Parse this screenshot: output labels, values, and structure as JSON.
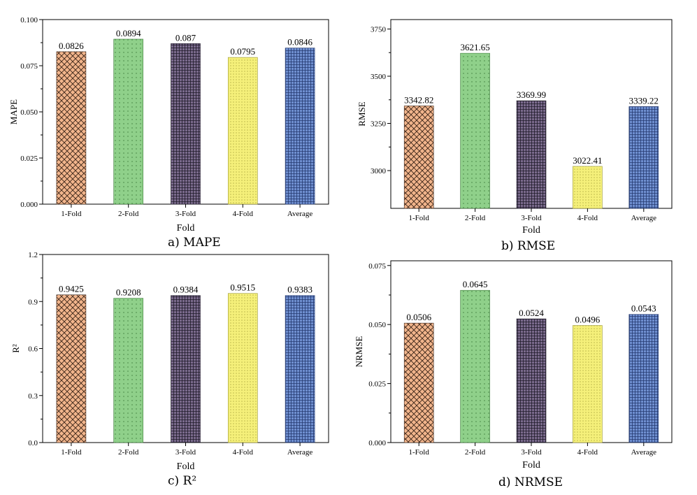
{
  "chart_data": [
    {
      "type": "bar",
      "caption": "a)  MAPE",
      "categories": [
        "1-Fold",
        "2-Fold",
        "3-Fold",
        "4-Fold",
        "Average"
      ],
      "values": [
        0.0826,
        0.0894,
        0.087,
        0.0795,
        0.0846
      ],
      "labels": [
        "0.0826",
        "0.0894",
        "0.087",
        "0.0795",
        "0.0846"
      ],
      "xlabel": "Fold",
      "ylabel": "MAPE",
      "ylim": [
        0,
        0.1
      ],
      "yticks": [
        "0.000",
        "0.025",
        "0.050",
        "0.075",
        "0.100"
      ],
      "ytick_values": [
        0,
        0.025,
        0.05,
        0.075,
        0.1
      ]
    },
    {
      "type": "bar",
      "caption": "b)  RMSE",
      "categories": [
        "1-Fold",
        "2-Fold",
        "3-Fold",
        "4-Fold",
        "Average"
      ],
      "values": [
        3342.82,
        3621.65,
        3369.99,
        3022.41,
        3339.22
      ],
      "labels": [
        "3342.82",
        "3621.65",
        "3369.99",
        "3022.41",
        "3339.22"
      ],
      "xlabel": "Fold",
      "ylabel": "RMSE",
      "ylim": [
        2800,
        3800
      ],
      "yticks": [
        "3000",
        "3250",
        "3500",
        "3750"
      ],
      "ytick_values": [
        3000,
        3250,
        3500,
        3750
      ]
    },
    {
      "type": "bar",
      "caption": "c)  R²",
      "categories": [
        "1-Fold",
        "2-Fold",
        "3-Fold",
        "4-Fold",
        "Average"
      ],
      "values": [
        0.9425,
        0.9208,
        0.9384,
        0.9515,
        0.9383
      ],
      "labels": [
        "0.9425",
        "0.9208",
        "0.9384",
        "0.9515",
        "0.9383"
      ],
      "xlabel": "Fold",
      "ylabel": "R²",
      "ylim": [
        0,
        1.2
      ],
      "yticks": [
        "0.0",
        "0.3",
        "0.6",
        "0.9",
        "1.2"
      ],
      "ytick_values": [
        0,
        0.3,
        0.6,
        0.9,
        1.2
      ]
    },
    {
      "type": "bar",
      "caption": "d)  NRMSE",
      "categories": [
        "1-Fold",
        "2-Fold",
        "3-Fold",
        "4-Fold",
        "Average"
      ],
      "values": [
        0.0506,
        0.0645,
        0.0524,
        0.0496,
        0.0543
      ],
      "labels": [
        "0.0506",
        "0.0645",
        "0.0524",
        "0.0496",
        "0.0543"
      ],
      "xlabel": "Fold",
      "ylabel": "NRMSE",
      "ylim": [
        0,
        0.077
      ],
      "yticks": [
        "0.000",
        "0.025",
        "0.050",
        "0.075"
      ],
      "ytick_values": [
        0,
        0.025,
        0.05,
        0.075
      ]
    }
  ],
  "bar_styles": [
    {
      "name": "crosshatch",
      "fill": "#f2b58c",
      "line": "#3a2418"
    },
    {
      "name": "dots",
      "fill": "#8fd08a",
      "line": "#3d7a3a"
    },
    {
      "name": "dense-grid",
      "fill": "#7a6a8c",
      "line": "#1e1a28"
    },
    {
      "name": "yellow-dots",
      "fill": "#f5f07a",
      "line": "#9a9630"
    },
    {
      "name": "blue-grid",
      "fill": "#6f8fd0",
      "line": "#24396e"
    }
  ]
}
